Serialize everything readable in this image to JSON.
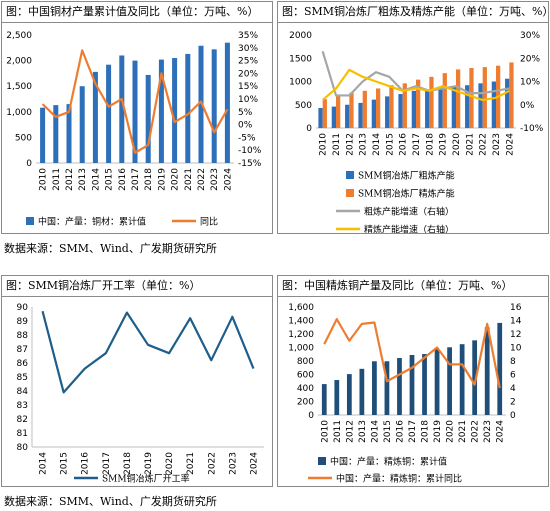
{
  "sources": {
    "top": "数据来源：SMM、Wind、广发期货研究所",
    "bottom": "数据来源：SMM、Wind、广发期货研究所"
  },
  "colors": {
    "blue": "#2e6fba",
    "orange": "#ee7d31",
    "gray": "#a6a6a6",
    "yellow": "#f6c000",
    "teal": "#1f4e79",
    "navy": "#1f5e8a"
  },
  "chart_data": [
    {
      "type": "bar",
      "title": "图：中国铜材产量累计值及同比（单位：万吨、%）",
      "categories": [
        "2010",
        "2011",
        "2012",
        "2013",
        "2014",
        "2015",
        "2016",
        "2017",
        "2018",
        "2019",
        "2020",
        "2021",
        "2022",
        "2023",
        "2024"
      ],
      "series": [
        {
          "name": "中国：产量：铜材：累计值",
          "kind": "bar",
          "axis": "left",
          "color": "#2e6fba",
          "values": [
            1080,
            1130,
            1150,
            1500,
            1780,
            1920,
            2100,
            2000,
            1720,
            2020,
            2050,
            2130,
            2290,
            2220,
            2350
          ]
        },
        {
          "name": "同比",
          "kind": "line",
          "axis": "right",
          "color": "#ee7d31",
          "values": [
            8,
            3,
            5,
            29,
            16,
            7,
            10,
            -11,
            -8,
            20,
            1,
            4,
            9,
            -3,
            6
          ]
        }
      ],
      "ylim_left": [
        0,
        2500
      ],
      "yticks_left": [
        "0",
        "500",
        "1,000",
        "1,500",
        "2,000",
        "2,500"
      ],
      "ylim_right": [
        -15,
        35
      ],
      "yticks_right": [
        "-15%",
        "-10%",
        "-5%",
        "0%",
        "5%",
        "10%",
        "15%",
        "20%",
        "25%",
        "30%",
        "35%"
      ]
    },
    {
      "type": "bar",
      "title": "图：SMM铜冶炼厂粗炼及精炼产能（单位：万吨、%）",
      "categories": [
        "2010",
        "2011",
        "2012",
        "2013",
        "2014",
        "2015",
        "2016",
        "2017",
        "2018",
        "2019",
        "2020",
        "2021",
        "2022",
        "2023",
        "2024"
      ],
      "series": [
        {
          "name": "SMM铜冶炼厂粗炼产能",
          "kind": "bar",
          "axis": "left",
          "color": "#2e6fba",
          "values": [
            430,
            460,
            500,
            540,
            610,
            680,
            730,
            800,
            830,
            870,
            900,
            920,
            960,
            1000,
            1060
          ]
        },
        {
          "name": "SMM铜冶炼厂精炼产能",
          "kind": "bar",
          "axis": "left",
          "color": "#ee7d31",
          "values": [
            620,
            700,
            760,
            800,
            850,
            920,
            960,
            1040,
            1100,
            1180,
            1260,
            1290,
            1310,
            1340,
            1410
          ]
        },
        {
          "name": "粗炼产能增速（右轴）",
          "kind": "line",
          "axis": "right",
          "color": "#a6a6a6",
          "values": [
            23,
            4,
            4,
            10,
            14,
            12,
            6,
            8,
            6,
            7,
            8,
            5,
            5,
            6,
            7
          ]
        },
        {
          "name": "精炼产能增速（右轴）",
          "kind": "line",
          "axis": "right",
          "color": "#f6c000",
          "values": [
            2,
            7,
            15,
            12,
            10,
            8,
            6,
            7,
            6,
            8,
            6,
            4,
            2,
            3,
            6
          ]
        }
      ],
      "ylim_left": [
        0,
        2000
      ],
      "yticks_left": [
        "0",
        "500",
        "1000",
        "1500",
        "2000"
      ],
      "ylim_right": [
        -10,
        30
      ],
      "yticks_right": [
        "-10%",
        "0%",
        "10%",
        "20%",
        "30%"
      ]
    },
    {
      "type": "line",
      "title": "图：SMM铜冶炼厂开工率（单位：%）",
      "categories": [
        "2014",
        "2015",
        "2016",
        "2017",
        "2018",
        "2019",
        "2020",
        "2021",
        "2022",
        "2023",
        "2024"
      ],
      "series": [
        {
          "name": "SMM铜冶炼厂开工率",
          "kind": "line",
          "axis": "left",
          "color": "#1f5e8a",
          "values": [
            89.7,
            83.9,
            85.6,
            86.7,
            89.6,
            87.3,
            86.7,
            89.2,
            86.2,
            89.3,
            85.6
          ]
        }
      ],
      "ylim_left": [
        80,
        90
      ],
      "yticks_left": [
        "80",
        "81",
        "82",
        "83",
        "84",
        "85",
        "86",
        "87",
        "88",
        "89",
        "90"
      ]
    },
    {
      "type": "bar",
      "title": "图：中国精炼铜产量及同比（单位：万吨、%）",
      "categories": [
        "2010",
        "2011",
        "2012",
        "2013",
        "2014",
        "2015",
        "2016",
        "2017",
        "2018",
        "2019",
        "2020",
        "2021",
        "2022",
        "2023",
        "2024"
      ],
      "series": [
        {
          "name": "中国：产量：精炼铜：累计值",
          "kind": "bar",
          "axis": "left",
          "color": "#1f4e79",
          "values": [
            458,
            518,
            606,
            684,
            796,
            796,
            844,
            889,
            903,
            978,
            1003,
            1049,
            1106,
            1299,
            1364
          ]
        },
        {
          "name": "中国：产量：精炼铜：累计同比",
          "kind": "line",
          "axis": "right",
          "color": "#ee7d31",
          "values": [
            10.5,
            14.2,
            11,
            13.5,
            13.7,
            5,
            6,
            7,
            8.5,
            10,
            7.5,
            7.5,
            4.5,
            13.5,
            4
          ]
        }
      ],
      "ylim_left": [
        0,
        1600
      ],
      "yticks_left": [
        "0",
        "200",
        "400",
        "600",
        "800",
        "1,000",
        "1,200",
        "1,400",
        "1,600"
      ],
      "ylim_right": [
        0,
        16
      ],
      "yticks_right": [
        "0",
        "2",
        "4",
        "6",
        "8",
        "10",
        "12",
        "14",
        "16"
      ]
    }
  ]
}
